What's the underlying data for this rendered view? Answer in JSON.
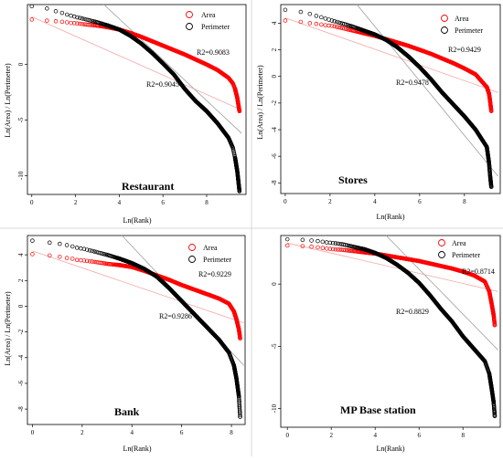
{
  "chart_data": [
    {
      "type": "scatter",
      "title": "Restaurant",
      "xlabel": "Ln(Rank)",
      "ylabel": "Ln(Area) / Ln(Perimeter)",
      "xlim": [
        -0.2,
        9.8
      ],
      "ylim": [
        -11.7,
        5.4
      ],
      "xticks": [
        0,
        2,
        4,
        6,
        8
      ],
      "yticks": [
        -10,
        -5,
        0
      ],
      "legend": [
        "Area",
        "Perimeter"
      ],
      "legend_position": "top-right",
      "series": [
        {
          "name": "Area",
          "color": "#ff0000",
          "x": [
            0,
            0.69,
            1.1,
            1.39,
            1.61,
            1.79,
            2.08,
            2.5,
            3,
            3.5,
            4,
            4.5,
            5,
            5.5,
            6,
            6.5,
            7,
            7.5,
            8,
            8.5,
            9,
            9.2,
            9.3,
            9.4,
            9.45,
            9.5
          ],
          "y": [
            4.05,
            3.95,
            3.9,
            3.85,
            3.8,
            3.75,
            3.7,
            3.6,
            3.5,
            3.35,
            3.15,
            2.85,
            2.5,
            2.1,
            1.7,
            1.3,
            0.9,
            0.45,
            0,
            -0.5,
            -1.2,
            -1.7,
            -2.2,
            -3,
            -3.6,
            -4.2
          ]
        },
        {
          "name": "Perimeter",
          "color": "#000000",
          "x": [
            0,
            0.69,
            1.1,
            1.39,
            1.61,
            1.79,
            2.08,
            2.5,
            3,
            3.5,
            4,
            4.5,
            5,
            5.5,
            6,
            6.5,
            7,
            7.5,
            8,
            8.5,
            9,
            9.2,
            9.3,
            9.4,
            9.45,
            9.5
          ],
          "y": [
            5.25,
            5.05,
            4.8,
            4.65,
            4.5,
            4.4,
            4.25,
            4.05,
            3.8,
            3.5,
            3.15,
            2.6,
            1.9,
            1.05,
            0.1,
            -0.9,
            -2.2,
            -3.3,
            -4.2,
            -5.3,
            -6.6,
            -7.5,
            -8.4,
            -9.6,
            -10.5,
            -11.4
          ]
        }
      ],
      "fit_lines": [
        {
          "color": "#f4a6a6",
          "x": [
            0,
            9.6
          ],
          "y": [
            4.3,
            -4.1
          ]
        },
        {
          "color": "#9e9e9e",
          "x": [
            3.3,
            9.6
          ],
          "y": [
            5.4,
            -6.2
          ]
        }
      ],
      "annotations": [
        "R2=0.9083",
        "R2=0.9045"
      ]
    },
    {
      "type": "scatter",
      "title": "Stores",
      "xlabel": "Ln(Rank)",
      "ylabel": "Ln(Area) / Ln(Perimeter)",
      "xlim": [
        -0.2,
        9.6
      ],
      "ylim": [
        -8.8,
        5.4
      ],
      "xticks": [
        0,
        2,
        4,
        6,
        8
      ],
      "yticks": [
        -8,
        -6,
        -4,
        -2,
        0,
        2,
        4
      ],
      "legend": [
        "Area",
        "Perimeter"
      ],
      "legend_position": "top-right",
      "series": [
        {
          "name": "Area",
          "color": "#ff0000",
          "x": [
            0,
            0.69,
            1.1,
            1.39,
            1.61,
            1.79,
            2.08,
            2.5,
            3,
            3.5,
            4,
            4.5,
            5,
            5.5,
            6,
            6.5,
            7,
            7.5,
            8,
            8.5,
            9,
            9.1,
            9.15,
            9.2
          ],
          "y": [
            4.2,
            4.1,
            4.0,
            3.95,
            3.9,
            3.85,
            3.8,
            3.65,
            3.45,
            3.25,
            3.05,
            2.8,
            2.55,
            2.3,
            2.0,
            1.7,
            1.35,
            1.0,
            0.6,
            0.15,
            -0.8,
            -1.3,
            -1.9,
            -2.6
          ]
        },
        {
          "name": "Perimeter",
          "color": "#000000",
          "x": [
            0,
            0.69,
            1.1,
            1.39,
            1.61,
            1.79,
            2.08,
            2.5,
            3,
            3.5,
            4,
            4.5,
            5,
            5.5,
            6,
            6.5,
            7,
            7.5,
            8,
            8.5,
            9,
            9.1,
            9.15,
            9.2
          ],
          "y": [
            5.0,
            4.85,
            4.7,
            4.55,
            4.45,
            4.35,
            4.2,
            4.0,
            3.75,
            3.45,
            3.15,
            2.75,
            2.2,
            1.5,
            0.7,
            -0.2,
            -1.2,
            -2.1,
            -3.0,
            -4.0,
            -5.3,
            -6.5,
            -7.5,
            -8.3
          ]
        }
      ],
      "fit_lines": [
        {
          "color": "#f4a6a6",
          "x": [
            0,
            9.5
          ],
          "y": [
            4.4,
            -1.2
          ]
        },
        {
          "color": "#9e9e9e",
          "x": [
            3.2,
            9.5
          ],
          "y": [
            5.4,
            -7.5
          ]
        }
      ],
      "annotations": [
        "R2=0.9429",
        "R2=0.9478"
      ]
    },
    {
      "type": "scatter",
      "title": "Bank",
      "xlabel": "Ln(Rank)",
      "ylabel": "Ln(Area) / Ln(Perimeter)",
      "xlim": [
        -0.2,
        8.55
      ],
      "ylim": [
        -9.2,
        5.5
      ],
      "xticks": [
        0,
        2,
        4,
        6,
        8
      ],
      "yticks": [
        -8,
        -6,
        -4,
        -2,
        0,
        2,
        4
      ],
      "legend": [
        "Area",
        "Perimeter"
      ],
      "legend_position": "top-right",
      "series": [
        {
          "name": "Area",
          "color": "#ff0000",
          "x": [
            0,
            0.69,
            1.1,
            1.39,
            1.61,
            1.79,
            2.08,
            2.5,
            3,
            3.5,
            4,
            4.5,
            5,
            5.5,
            6,
            6.5,
            7,
            7.5,
            7.9,
            8.1,
            8.2,
            8.3,
            8.35
          ],
          "y": [
            4.05,
            3.95,
            3.85,
            3.75,
            3.7,
            3.6,
            3.55,
            3.45,
            3.3,
            3.2,
            3.05,
            2.75,
            2.4,
            2.05,
            1.65,
            1.3,
            0.95,
            0.6,
            0.2,
            -0.4,
            -1.0,
            -1.8,
            -2.5
          ]
        },
        {
          "name": "Perimeter",
          "color": "#000000",
          "x": [
            0,
            0.69,
            1.1,
            1.39,
            1.61,
            1.79,
            2.08,
            2.5,
            3,
            3.5,
            4,
            4.5,
            5,
            5.5,
            6,
            6.5,
            7,
            7.5,
            7.9,
            8.1,
            8.2,
            8.3,
            8.35
          ],
          "y": [
            5.1,
            4.95,
            4.85,
            4.75,
            4.65,
            4.55,
            4.45,
            4.25,
            4.0,
            3.7,
            3.35,
            2.9,
            2.3,
            1.4,
            0.4,
            -0.6,
            -1.6,
            -2.6,
            -3.6,
            -4.6,
            -5.6,
            -7.0,
            -8.6
          ]
        }
      ],
      "fit_lines": [
        {
          "color": "#f4a6a6",
          "x": [
            0,
            8.5
          ],
          "y": [
            4.3,
            -1.3
          ]
        },
        {
          "color": "#9e9e9e",
          "x": [
            3.6,
            8.5
          ],
          "y": [
            5.5,
            -4.6
          ]
        }
      ],
      "annotations": [
        "R2=0.9229",
        "R2=0.9286"
      ]
    },
    {
      "type": "scatter",
      "title": "MP Base station",
      "xlabel": "Ln(Rank)",
      "ylabel": "",
      "xlim": [
        -0.3,
        9.7
      ],
      "ylim": [
        -11.5,
        3.9
      ],
      "xticks": [
        0,
        2,
        4,
        6,
        8
      ],
      "yticks": [
        -10,
        -5,
        0
      ],
      "legend": [
        "Area",
        "Perimeter"
      ],
      "legend_position": "top-right",
      "series": [
        {
          "name": "Area",
          "color": "#ff0000",
          "x": [
            0,
            0.69,
            1.1,
            1.39,
            1.61,
            1.79,
            2.08,
            2.5,
            3,
            3.5,
            4,
            4.5,
            5,
            5.5,
            6,
            6.5,
            7,
            7.5,
            8,
            8.5,
            9,
            9.2,
            9.3,
            9.4,
            9.45
          ],
          "y": [
            3.1,
            3.05,
            3.0,
            2.95,
            2.9,
            2.85,
            2.8,
            2.75,
            2.65,
            2.55,
            2.45,
            2.3,
            2.15,
            2.0,
            1.85,
            1.65,
            1.45,
            1.25,
            1.0,
            0.7,
            0.2,
            -0.6,
            -1.5,
            -2.5,
            -3.3
          ]
        },
        {
          "name": "Perimeter",
          "color": "#000000",
          "x": [
            0,
            0.69,
            1.1,
            1.39,
            1.61,
            1.79,
            2.08,
            2.5,
            3,
            3.5,
            4,
            4.5,
            5,
            5.5,
            6,
            6.5,
            7,
            7.5,
            8,
            8.5,
            9,
            9.2,
            9.3,
            9.4,
            9.45
          ],
          "y": [
            3.6,
            3.55,
            3.5,
            3.45,
            3.4,
            3.35,
            3.3,
            3.2,
            3.0,
            2.8,
            2.5,
            2.1,
            1.55,
            0.9,
            0.1,
            -0.9,
            -2.0,
            -3.0,
            -4.2,
            -5.2,
            -6.2,
            -7.2,
            -8.3,
            -9.5,
            -10.6
          ]
        }
      ],
      "fit_lines": [
        {
          "color": "#f4a6a6",
          "x": [
            0,
            9.6
          ],
          "y": [
            3.3,
            -0.6
          ]
        },
        {
          "color": "#9e9e9e",
          "x": [
            4.5,
            9.6
          ],
          "y": [
            3.9,
            -5.3
          ]
        }
      ],
      "annotations": [
        "R2=0.8714",
        "R2=0.8829"
      ]
    }
  ]
}
